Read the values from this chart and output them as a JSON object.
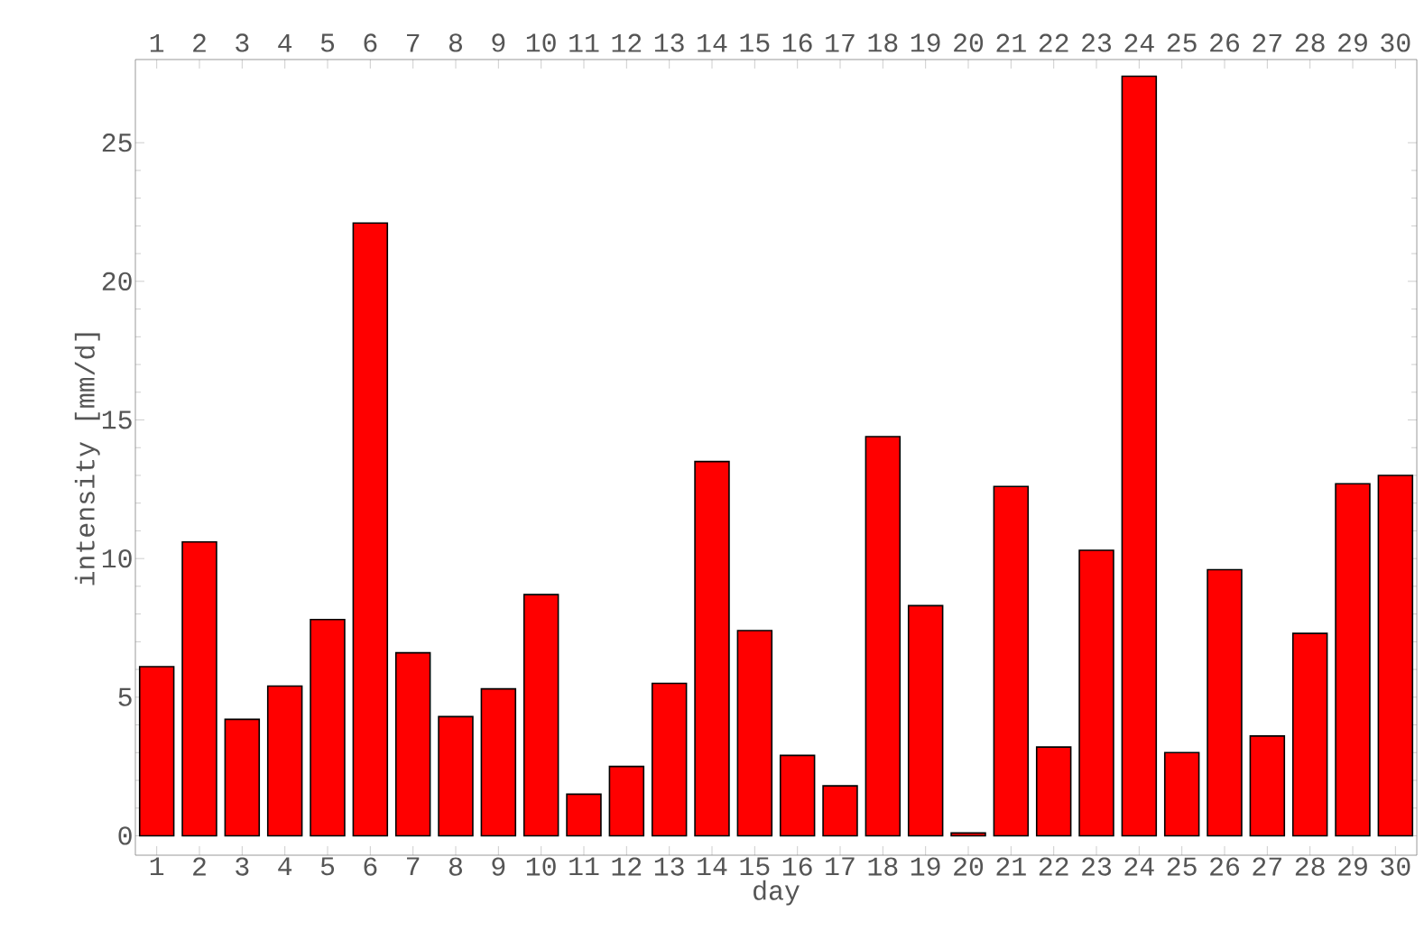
{
  "chart_data": {
    "type": "bar",
    "xlabel": "day",
    "ylabel": "intensity [mm/d]",
    "categories": [
      "1",
      "2",
      "3",
      "4",
      "5",
      "6",
      "7",
      "8",
      "9",
      "10",
      "11",
      "12",
      "13",
      "14",
      "15",
      "16",
      "17",
      "18",
      "19",
      "20",
      "21",
      "22",
      "23",
      "24",
      "25",
      "26",
      "27",
      "28",
      "29",
      "30"
    ],
    "values": [
      6.1,
      10.6,
      4.2,
      5.4,
      7.8,
      22.1,
      6.6,
      4.3,
      5.3,
      8.7,
      1.5,
      2.5,
      5.5,
      13.5,
      7.4,
      2.9,
      1.8,
      14.4,
      8.3,
      0.1,
      12.6,
      3.2,
      10.3,
      27.4,
      3.0,
      9.6,
      3.6,
      7.3,
      12.7,
      13.0
    ],
    "color": "#ff0000",
    "ylim": [
      -0.7,
      28
    ],
    "yticks": [
      0,
      5,
      10,
      15,
      20,
      25
    ],
    "grid": false
  }
}
